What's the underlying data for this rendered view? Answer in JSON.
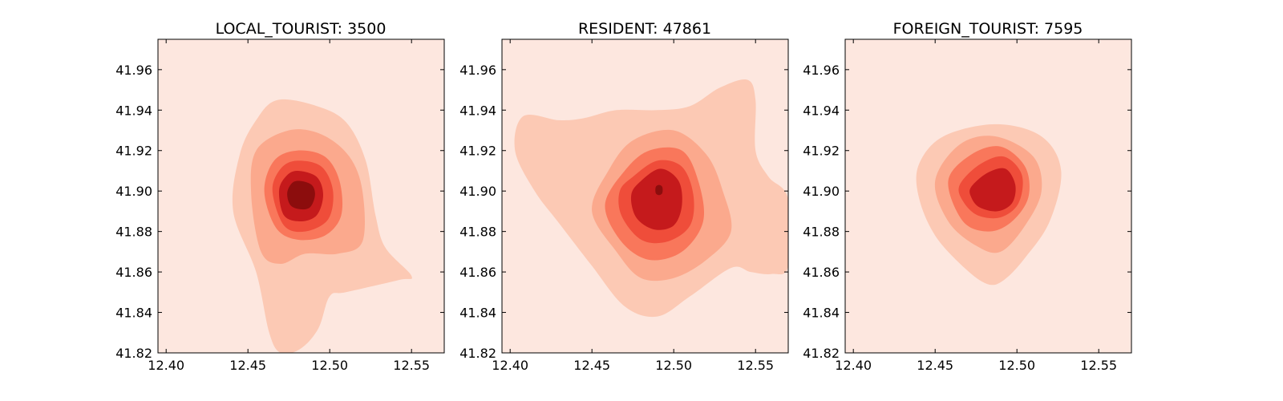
{
  "chart_data": [
    {
      "type": "contour",
      "title": "LOCAL_TOURIST: 3500",
      "xlim": [
        12.395,
        12.57
      ],
      "ylim": [
        41.82,
        41.975
      ],
      "xticks": [
        "12.40",
        "12.45",
        "12.50",
        "12.55"
      ],
      "yticks": [
        "41.82",
        "41.84",
        "41.86",
        "41.88",
        "41.90",
        "41.92",
        "41.94",
        "41.96"
      ],
      "xlabel": "",
      "ylabel": "",
      "background_color": "#fde7df",
      "peak": [
        12.482,
        41.899
      ],
      "contours": [
        [
          [
            12.468,
            41.945
          ],
          [
            12.492,
            41.942
          ],
          [
            12.51,
            41.934
          ],
          [
            12.522,
            41.915
          ],
          [
            12.528,
            41.888
          ],
          [
            12.534,
            41.872
          ],
          [
            12.55,
            41.858
          ],
          [
            12.542,
            41.856
          ],
          [
            12.51,
            41.85
          ],
          [
            12.5,
            41.848
          ],
          [
            12.493,
            41.832
          ],
          [
            12.482,
            41.822
          ],
          [
            12.47,
            41.82
          ],
          [
            12.463,
            41.83
          ],
          [
            12.455,
            41.86
          ],
          [
            12.441,
            41.89
          ],
          [
            12.445,
            41.918
          ],
          [
            12.455,
            41.935
          ]
        ],
        [
          [
            12.475,
            41.93
          ],
          [
            12.495,
            41.928
          ],
          [
            12.512,
            41.917
          ],
          [
            12.52,
            41.9
          ],
          [
            12.52,
            41.875
          ],
          [
            12.505,
            41.869
          ],
          [
            12.485,
            41.869
          ],
          [
            12.47,
            41.864
          ],
          [
            12.458,
            41.87
          ],
          [
            12.452,
            41.898
          ],
          [
            12.455,
            41.92
          ]
        ],
        [
          [
            12.48,
            41.92
          ],
          [
            12.497,
            41.917
          ],
          [
            12.506,
            41.905
          ],
          [
            12.507,
            41.888
          ],
          [
            12.497,
            41.878
          ],
          [
            12.48,
            41.876
          ],
          [
            12.467,
            41.882
          ],
          [
            12.46,
            41.9
          ],
          [
            12.466,
            41.915
          ]
        ],
        [
          [
            12.48,
            41.915
          ],
          [
            12.495,
            41.912
          ],
          [
            12.502,
            41.9
          ],
          [
            12.499,
            41.886
          ],
          [
            12.485,
            41.88
          ],
          [
            12.472,
            41.883
          ],
          [
            12.465,
            41.9
          ],
          [
            12.47,
            41.911
          ]
        ],
        [
          [
            12.48,
            41.91
          ],
          [
            12.492,
            41.907
          ],
          [
            12.496,
            41.898
          ],
          [
            12.492,
            41.888
          ],
          [
            12.482,
            41.885
          ],
          [
            12.472,
            41.888
          ],
          [
            12.469,
            41.9
          ],
          [
            12.473,
            41.907
          ]
        ],
        [
          [
            12.482,
            41.905
          ],
          [
            12.489,
            41.903
          ],
          [
            12.491,
            41.898
          ],
          [
            12.488,
            41.892
          ],
          [
            12.482,
            41.891
          ],
          [
            12.476,
            41.893
          ],
          [
            12.474,
            41.899
          ],
          [
            12.477,
            41.904
          ]
        ]
      ]
    },
    {
      "type": "contour",
      "title": "RESIDENT: 47861",
      "xlim": [
        12.395,
        12.57
      ],
      "ylim": [
        41.82,
        41.975
      ],
      "xticks": [
        "12.40",
        "12.45",
        "12.50",
        "12.55"
      ],
      "yticks": [
        "41.82",
        "41.84",
        "41.86",
        "41.88",
        "41.90",
        "41.92",
        "41.94",
        "41.96"
      ],
      "xlabel": "",
      "ylabel": "",
      "background_color": "#fde7df",
      "peak": [
        12.491,
        41.901
      ],
      "contours": [
        [
          [
            12.408,
            41.937
          ],
          [
            12.43,
            41.935
          ],
          [
            12.445,
            41.936
          ],
          [
            12.465,
            41.94
          ],
          [
            12.49,
            41.94
          ],
          [
            12.51,
            41.942
          ],
          [
            12.528,
            41.951
          ],
          [
            12.545,
            41.955
          ],
          [
            12.55,
            41.945
          ],
          [
            12.55,
            41.92
          ],
          [
            12.558,
            41.907
          ],
          [
            12.57,
            41.896
          ],
          [
            12.57,
            41.863
          ],
          [
            12.56,
            41.859
          ],
          [
            12.547,
            41.86
          ],
          [
            12.535,
            41.862
          ],
          [
            12.51,
            41.848
          ],
          [
            12.49,
            41.838
          ],
          [
            12.47,
            41.843
          ],
          [
            12.45,
            41.863
          ],
          [
            12.43,
            41.884
          ],
          [
            12.415,
            41.9
          ],
          [
            12.403,
            41.92
          ]
        ],
        [
          [
            12.46,
            41.91
          ],
          [
            12.475,
            41.925
          ],
          [
            12.5,
            41.93
          ],
          [
            12.52,
            41.918
          ],
          [
            12.53,
            41.9
          ],
          [
            12.535,
            41.88
          ],
          [
            12.52,
            41.866
          ],
          [
            12.5,
            41.857
          ],
          [
            12.48,
            41.857
          ],
          [
            12.465,
            41.87
          ],
          [
            12.45,
            41.89
          ]
        ],
        [
          [
            12.47,
            41.91
          ],
          [
            12.485,
            41.92
          ],
          [
            12.505,
            41.92
          ],
          [
            12.515,
            41.905
          ],
          [
            12.518,
            41.885
          ],
          [
            12.505,
            41.87
          ],
          [
            12.485,
            41.866
          ],
          [
            12.468,
            41.875
          ],
          [
            12.458,
            41.893
          ]
        ],
        [
          [
            12.475,
            41.907
          ],
          [
            12.49,
            41.915
          ],
          [
            12.505,
            41.912
          ],
          [
            12.512,
            41.898
          ],
          [
            12.51,
            41.883
          ],
          [
            12.496,
            41.875
          ],
          [
            12.48,
            41.876
          ],
          [
            12.468,
            41.888
          ],
          [
            12.467,
            41.9
          ]
        ],
        [
          [
            12.48,
            41.905
          ],
          [
            12.492,
            41.911
          ],
          [
            12.503,
            41.905
          ],
          [
            12.505,
            41.893
          ],
          [
            12.5,
            41.883
          ],
          [
            12.488,
            41.881
          ],
          [
            12.477,
            41.887
          ],
          [
            12.474,
            41.898
          ]
        ],
        [
          [
            12.491,
            41.903
          ],
          [
            12.493,
            41.902
          ],
          [
            12.493,
            41.899
          ],
          [
            12.491,
            41.898
          ],
          [
            12.489,
            41.899
          ],
          [
            12.489,
            41.902
          ]
        ]
      ]
    },
    {
      "type": "contour",
      "title": "FOREIGN_TOURIST: 7595",
      "xlim": [
        12.395,
        12.57
      ],
      "ylim": [
        41.82,
        41.975
      ],
      "xticks": [
        "12.40",
        "12.45",
        "12.50",
        "12.55"
      ],
      "yticks": [
        "41.82",
        "41.84",
        "41.86",
        "41.88",
        "41.90",
        "41.92",
        "41.94",
        "41.96"
      ],
      "xlabel": "",
      "ylabel": "",
      "background_color": "#fde7df",
      "peak": [
        12.487,
        41.9
      ],
      "contours": [
        [
          [
            12.44,
            41.913
          ],
          [
            12.455,
            41.927
          ],
          [
            12.487,
            41.933
          ],
          [
            12.515,
            41.927
          ],
          [
            12.527,
            41.91
          ],
          [
            12.52,
            41.885
          ],
          [
            12.505,
            41.867
          ],
          [
            12.492,
            41.856
          ],
          [
            12.482,
            41.854
          ],
          [
            12.468,
            41.862
          ],
          [
            12.45,
            41.878
          ],
          [
            12.44,
            41.897
          ]
        ],
        [
          [
            12.45,
            41.905
          ],
          [
            12.465,
            41.923
          ],
          [
            12.487,
            41.927
          ],
          [
            12.51,
            41.917
          ],
          [
            12.515,
            41.9
          ],
          [
            12.505,
            41.883
          ],
          [
            12.49,
            41.87
          ],
          [
            12.475,
            41.873
          ],
          [
            12.458,
            41.885
          ]
        ],
        [
          [
            12.458,
            41.905
          ],
          [
            12.472,
            41.918
          ],
          [
            12.49,
            41.922
          ],
          [
            12.505,
            41.912
          ],
          [
            12.507,
            41.897
          ],
          [
            12.497,
            41.885
          ],
          [
            12.483,
            41.88
          ],
          [
            12.467,
            41.885
          ]
        ],
        [
          [
            12.465,
            41.903
          ],
          [
            12.477,
            41.913
          ],
          [
            12.492,
            41.917
          ],
          [
            12.503,
            41.908
          ],
          [
            12.501,
            41.894
          ],
          [
            12.49,
            41.887
          ],
          [
            12.476,
            41.888
          ],
          [
            12.467,
            41.895
          ]
        ],
        [
          [
            12.472,
            41.902
          ],
          [
            12.482,
            41.909
          ],
          [
            12.493,
            41.911
          ],
          [
            12.499,
            41.903
          ],
          [
            12.497,
            41.894
          ],
          [
            12.488,
            41.89
          ],
          [
            12.477,
            41.892
          ],
          [
            12.472,
            41.897
          ]
        ]
      ]
    }
  ],
  "colors": {
    "levels": [
      "#fcc9b4",
      "#fba98d",
      "#f9775b",
      "#ef4d3a",
      "#c51a1c",
      "#8c0d0d"
    ]
  }
}
